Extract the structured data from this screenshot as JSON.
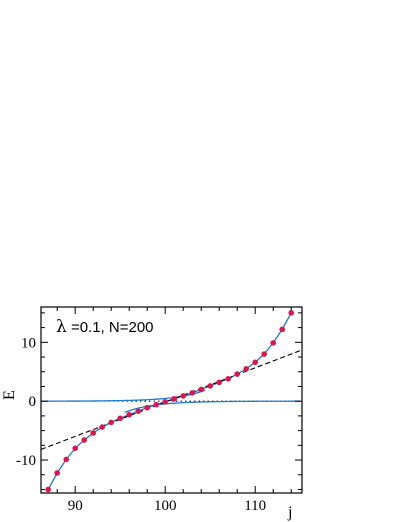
{
  "chart_data": {
    "type": "scatter",
    "title": "",
    "annotation": {
      "symbol": "λ",
      "text": " =0.1, N=200"
    },
    "xlabel": "j",
    "ylabel": "E",
    "xlim": [
      86.2,
      115.2
    ],
    "ylim": [
      -15.6,
      16.0
    ],
    "x_ticks": [
      90,
      100,
      110
    ],
    "y_ticks": [
      -10,
      0,
      10
    ],
    "grid": false,
    "colors": {
      "points": "#e0144c",
      "curve": "#1f78d1",
      "dashed": "#000000",
      "dotted": "#000000"
    },
    "series": [
      {
        "kind": "points",
        "x": [
          87,
          88,
          89,
          90,
          91,
          92,
          93,
          94,
          95,
          96,
          97,
          98,
          99,
          100,
          101,
          102,
          103,
          104,
          105,
          106,
          107,
          108,
          109,
          110,
          111,
          112,
          113,
          114
        ],
        "y": [
          -15.0,
          -12.2,
          -9.9,
          -8.0,
          -6.6,
          -5.4,
          -4.4,
          -3.6,
          -2.9,
          -2.3,
          -1.7,
          -1.1,
          -0.6,
          -0.1,
          0.4,
          0.9,
          1.4,
          2.0,
          2.6,
          3.2,
          3.8,
          4.6,
          5.5,
          6.6,
          8.0,
          9.9,
          12.2,
          15.0
        ]
      },
      {
        "kind": "dashed",
        "x": [
          86.2,
          115.2
        ],
        "y": [
          -8.2,
          8.7
        ]
      },
      {
        "kind": "dotted",
        "x": [
          86.2,
          115.2
        ],
        "y": [
          0,
          0
        ]
      }
    ]
  }
}
